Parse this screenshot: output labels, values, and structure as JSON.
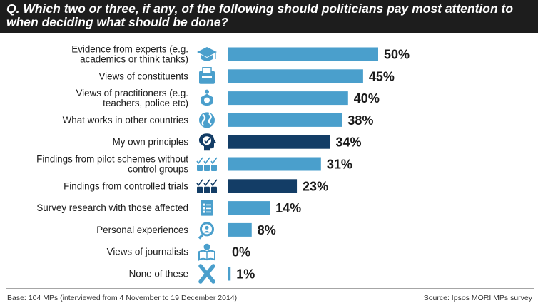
{
  "header": {
    "question": "Q. Which two or three, if any, of the following should politicians pay most attention to when deciding what should be done?"
  },
  "chart_data": {
    "type": "bar",
    "orientation": "horizontal",
    "categories": [
      [
        "Evidence from experts (e.g.",
        "academics or think tanks)"
      ],
      [
        "Views of constituents"
      ],
      [
        "Views of practitioners (e.g.",
        "teachers, police etc)"
      ],
      [
        "What works in other countries"
      ],
      [
        "My own principles"
      ],
      [
        "Findings from pilot schemes without",
        "control groups"
      ],
      [
        "Findings from controlled trials"
      ],
      [
        "Survey research with those affected"
      ],
      [
        "Personal experiences"
      ],
      [
        "Views of journalists"
      ],
      [
        "None of these"
      ]
    ],
    "values": [
      50,
      45,
      40,
      38,
      34,
      31,
      23,
      14,
      8,
      0,
      1
    ],
    "value_labels": [
      "50%",
      "45%",
      "40%",
      "38%",
      "34%",
      "31%",
      "23%",
      "14%",
      "8%",
      "0%",
      "1%"
    ],
    "highlighted": [
      false,
      false,
      false,
      false,
      true,
      false,
      true,
      false,
      false,
      false,
      false
    ],
    "icons": [
      "graduation-cap-icon",
      "ballot-box-icon",
      "police-badge-icon",
      "globe-icon",
      "head-check-icon",
      "pilot-checklist-icon",
      "trial-checklist-icon",
      "survey-form-icon",
      "magnifier-person-icon",
      "journalist-icon",
      "cross-icon"
    ],
    "xlim": [
      0,
      50
    ],
    "colors": {
      "default": "#4a9fcc",
      "highlight": "#133d66",
      "icon_default": "#4a9fcc",
      "icon_highlight": "#133d66"
    },
    "grid": false,
    "legend": "none"
  },
  "footer": {
    "base": "Base: 104 MPs (interviewed from 4 November to 19 December 2014)",
    "source": "Source: Ipsos MORI MPs survey"
  }
}
